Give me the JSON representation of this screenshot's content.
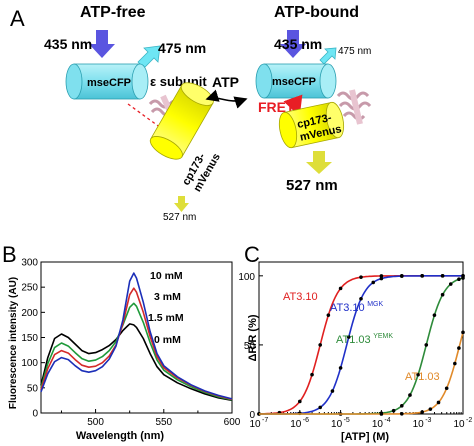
{
  "panel_a": {
    "letter": "A",
    "free_title": "ATP-free",
    "bound_title": "ATP-bound",
    "free_excitation": "435 nm",
    "free_emission": "475 nm",
    "free_donor": "mseCFP",
    "epsilon": "ε subunit",
    "free_acceptor_1": "cp173-",
    "free_acceptor_2": "mVenus",
    "free_acceptor_emission": "527 nm",
    "atp": "ATP",
    "bound_excitation": "435 nm",
    "bound_emission": "475 nm",
    "bound_donor": "mseCFP",
    "fret": "FRET",
    "bound_acceptor_1": "cp173-",
    "bound_acceptor_2": "mVenus",
    "bound_acceptor_emission": "527 nm",
    "colors": {
      "cyan": "#7fe0ee",
      "yellow": "#ffff00",
      "excitation_arrow": "#5a55e0",
      "emission_arrow_cyan": "#6ee6f4",
      "emission_arrow_yellow": "#dede3a",
      "fret": "#e81e25",
      "helix": "#e8c4d0"
    }
  },
  "chart_data": [
    {
      "type": "line",
      "panel_letter": "B",
      "xlabel": "Wavelength (nm)",
      "ylabel": "Fluorescence intensity (AU)",
      "xlim": [
        460,
        600
      ],
      "ylim": [
        0,
        300
      ],
      "xticks": [
        "500",
        "550",
        "600"
      ],
      "yticks": [
        "0",
        "50",
        "100",
        "150",
        "200",
        "250",
        "300"
      ],
      "grid": false,
      "legend_position": "annotations near peaks",
      "series": [
        {
          "name": "0 mM",
          "color": "#000000",
          "x": [
            460,
            465,
            470,
            475,
            480,
            485,
            490,
            495,
            500,
            505,
            510,
            515,
            520,
            525,
            528,
            530,
            535,
            540,
            545,
            550,
            560,
            570,
            580,
            590,
            600
          ],
          "y": [
            55,
            110,
            148,
            157,
            150,
            137,
            124,
            118,
            120,
            126,
            134,
            146,
            164,
            177,
            175,
            170,
            148,
            118,
            92,
            76,
            60,
            48,
            38,
            30,
            25
          ]
        },
        {
          "name": "1.5 mM",
          "color": "#1f9a3a",
          "x": [
            460,
            465,
            470,
            475,
            480,
            485,
            490,
            495,
            500,
            505,
            510,
            515,
            520,
            525,
            528,
            530,
            535,
            540,
            545,
            550,
            560,
            570,
            580,
            590,
            600
          ],
          "y": [
            50,
            98,
            130,
            139,
            133,
            120,
            108,
            103,
            105,
            112,
            124,
            142,
            175,
            210,
            218,
            212,
            180,
            140,
            105,
            85,
            66,
            52,
            41,
            32,
            26
          ]
        },
        {
          "name": "3 mM",
          "color": "#d42a2a",
          "x": [
            460,
            465,
            470,
            475,
            480,
            485,
            490,
            495,
            500,
            505,
            510,
            515,
            520,
            525,
            528,
            530,
            535,
            540,
            545,
            550,
            560,
            570,
            580,
            590,
            600
          ],
          "y": [
            46,
            88,
            116,
            124,
            119,
            106,
            95,
            91,
            93,
            100,
            113,
            135,
            178,
            235,
            248,
            240,
            200,
            152,
            112,
            90,
            70,
            55,
            43,
            34,
            27
          ]
        },
        {
          "name": "10 mM",
          "color": "#1c2fb8",
          "x": [
            460,
            465,
            470,
            475,
            480,
            485,
            490,
            495,
            500,
            505,
            510,
            515,
            520,
            525,
            528,
            530,
            535,
            540,
            545,
            550,
            560,
            570,
            580,
            590,
            600
          ],
          "y": [
            42,
            78,
            102,
            110,
            106,
            94,
            84,
            81,
            84,
            92,
            107,
            133,
            185,
            262,
            278,
            268,
            220,
            162,
            118,
            94,
            72,
            56,
            44,
            35,
            28
          ]
        }
      ],
      "annotations": [
        "10 mM",
        "3 mM",
        "1.5 mM",
        "0 mM"
      ]
    },
    {
      "type": "scatter",
      "panel_letter": "C",
      "xlabel": "[ATP] (M)",
      "ylabel": "ΔR/R (%)",
      "x_scale": "log",
      "xlim_exp": [
        -7,
        -2
      ],
      "ylim": [
        0,
        110
      ],
      "xticks": [
        "10",
        "10",
        "10",
        "10",
        "10",
        "10"
      ],
      "xtick_exponents": [
        "-7",
        "-6",
        "-5",
        "-4",
        "-3",
        "-2"
      ],
      "yticks": [
        "0",
        "50",
        "100"
      ],
      "grid": false,
      "series": [
        {
          "label": "AT3.10",
          "label_sup": "",
          "color": "#e02020",
          "kd_exp": -5.5,
          "hill": 2.0,
          "points_exp": [
            -7,
            -6.5,
            -6,
            -5.7,
            -5.5,
            -5.3,
            -5,
            -4.5,
            -4,
            -3.5,
            -3,
            -2.5,
            -2
          ]
        },
        {
          "label": "AT3.10",
          "label_sup": "MGK",
          "color": "#2030c8",
          "kd_exp": -4.85,
          "hill": 2.0,
          "points_exp": [
            -7,
            -6,
            -5.5,
            -5.2,
            -5,
            -4.8,
            -4.5,
            -4.2,
            -4,
            -3.5,
            -3,
            -2.5,
            -2
          ]
        },
        {
          "label": "AT1.03",
          "label_sup": "YEMK",
          "color": "#2e8b3a",
          "kd_exp": -2.9,
          "hill": 2.0,
          "points_exp": [
            -5,
            -4,
            -3.7,
            -3.5,
            -3.3,
            -3.1,
            -2.9,
            -2.7,
            -2.5,
            -2.3,
            -2.1,
            -2
          ]
        },
        {
          "label": "AT1.03",
          "label_sup": "",
          "color": "#e08a2a",
          "kd_exp": -2.08,
          "hill": 2.0,
          "points_exp": [
            -4,
            -3.5,
            -3,
            -2.8,
            -2.6,
            -2.4,
            -2.2,
            -2.1,
            -2
          ]
        }
      ]
    }
  ]
}
